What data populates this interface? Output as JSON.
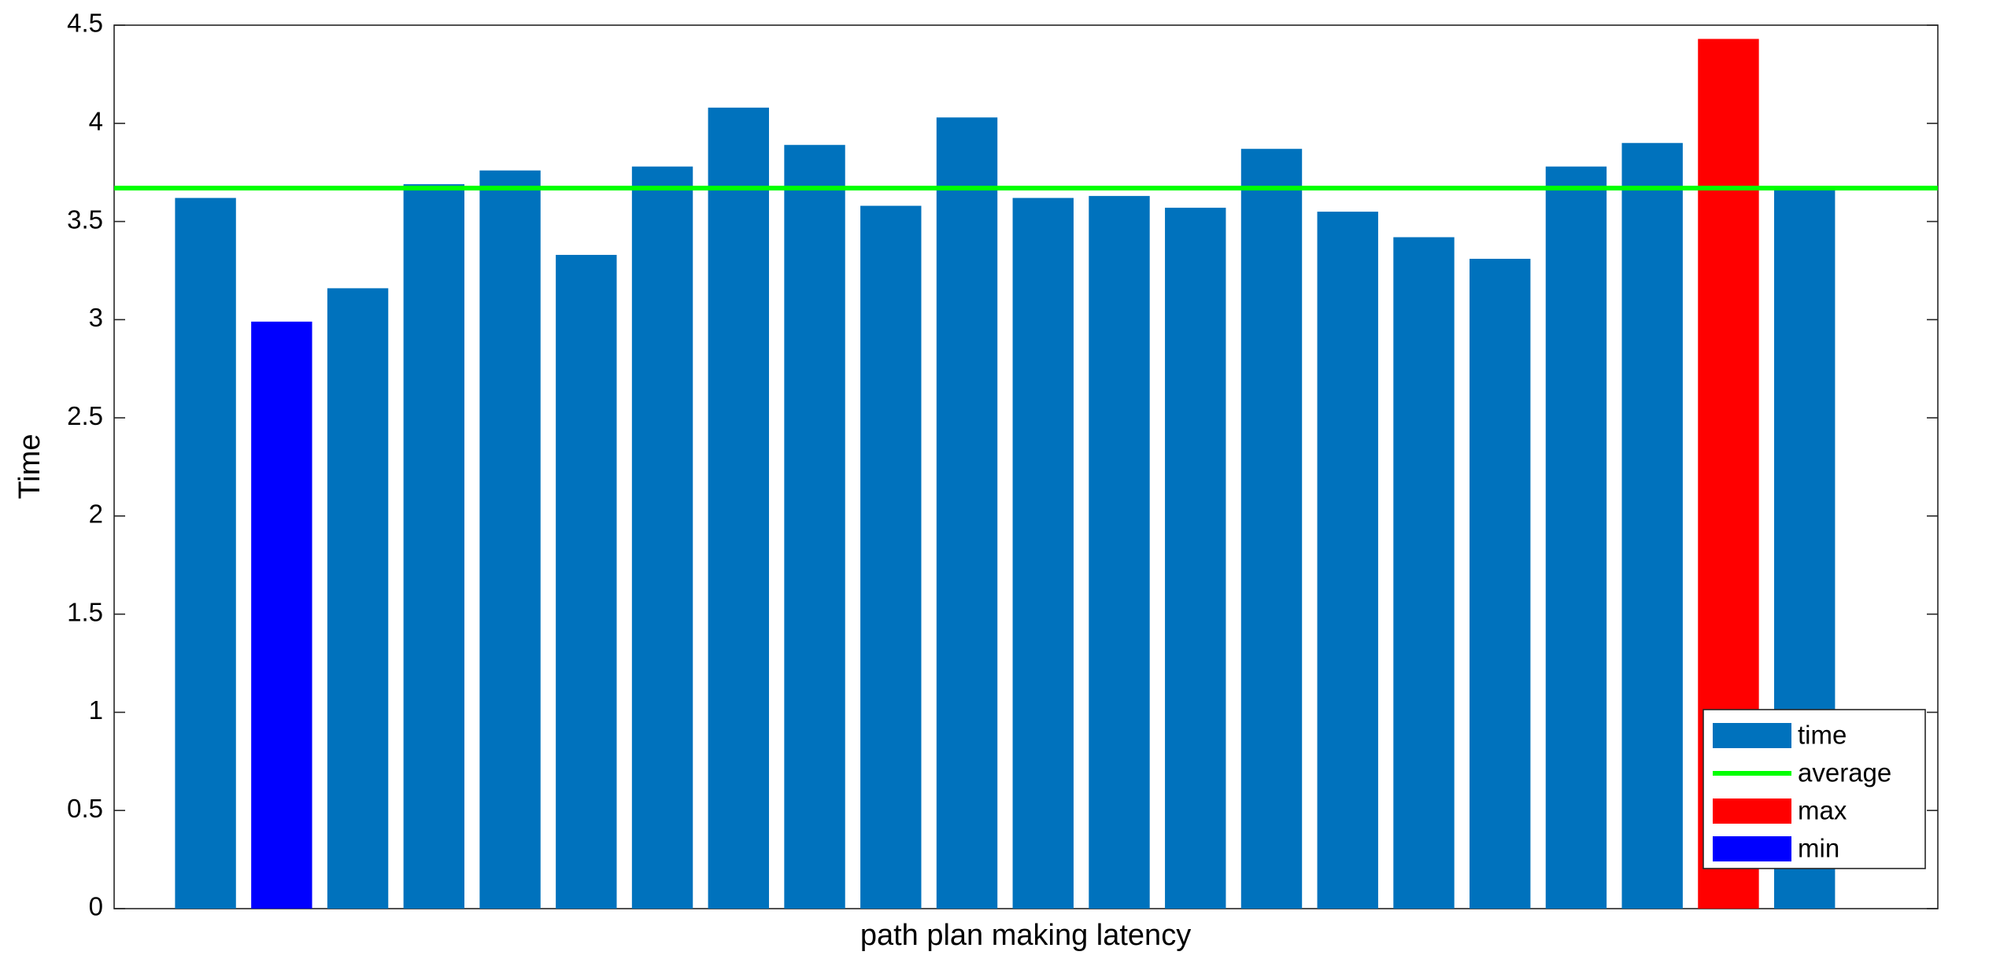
{
  "chart_data": {
    "type": "bar",
    "xlabel": "path plan making latency",
    "ylabel": "Time",
    "categories": [
      null,
      null,
      null,
      null,
      null,
      null,
      null,
      null,
      null,
      null,
      null,
      null,
      null,
      null,
      null,
      null,
      null,
      null,
      null,
      null,
      null,
      null
    ],
    "series": [
      {
        "name": "time",
        "color": "#0072bd",
        "values": [
          3.62,
          null,
          3.16,
          3.69,
          3.76,
          3.33,
          3.78,
          4.08,
          3.89,
          3.58,
          4.03,
          3.62,
          3.63,
          3.57,
          3.87,
          3.55,
          3.42,
          3.31,
          3.78,
          3.9,
          null,
          3.67
        ]
      },
      {
        "name": "average",
        "color": "#00ff00",
        "type": "hline",
        "value": 3.67
      },
      {
        "name": "max",
        "color": "#ff0000",
        "values": [
          null,
          null,
          null,
          null,
          null,
          null,
          null,
          null,
          null,
          null,
          null,
          null,
          null,
          null,
          null,
          null,
          null,
          null,
          null,
          null,
          4.43,
          null
        ]
      },
      {
        "name": "min",
        "color": "#0000ff",
        "values": [
          null,
          2.99,
          null,
          null,
          null,
          null,
          null,
          null,
          null,
          null,
          null,
          null,
          null,
          null,
          null,
          null,
          null,
          null,
          null,
          null,
          null,
          null
        ]
      }
    ],
    "ylim": [
      0,
      4.5
    ],
    "yticks": [
      0,
      0.5,
      1,
      1.5,
      2,
      2.5,
      3,
      3.5,
      4,
      4.5
    ],
    "grid": false,
    "legend": "southeast"
  }
}
